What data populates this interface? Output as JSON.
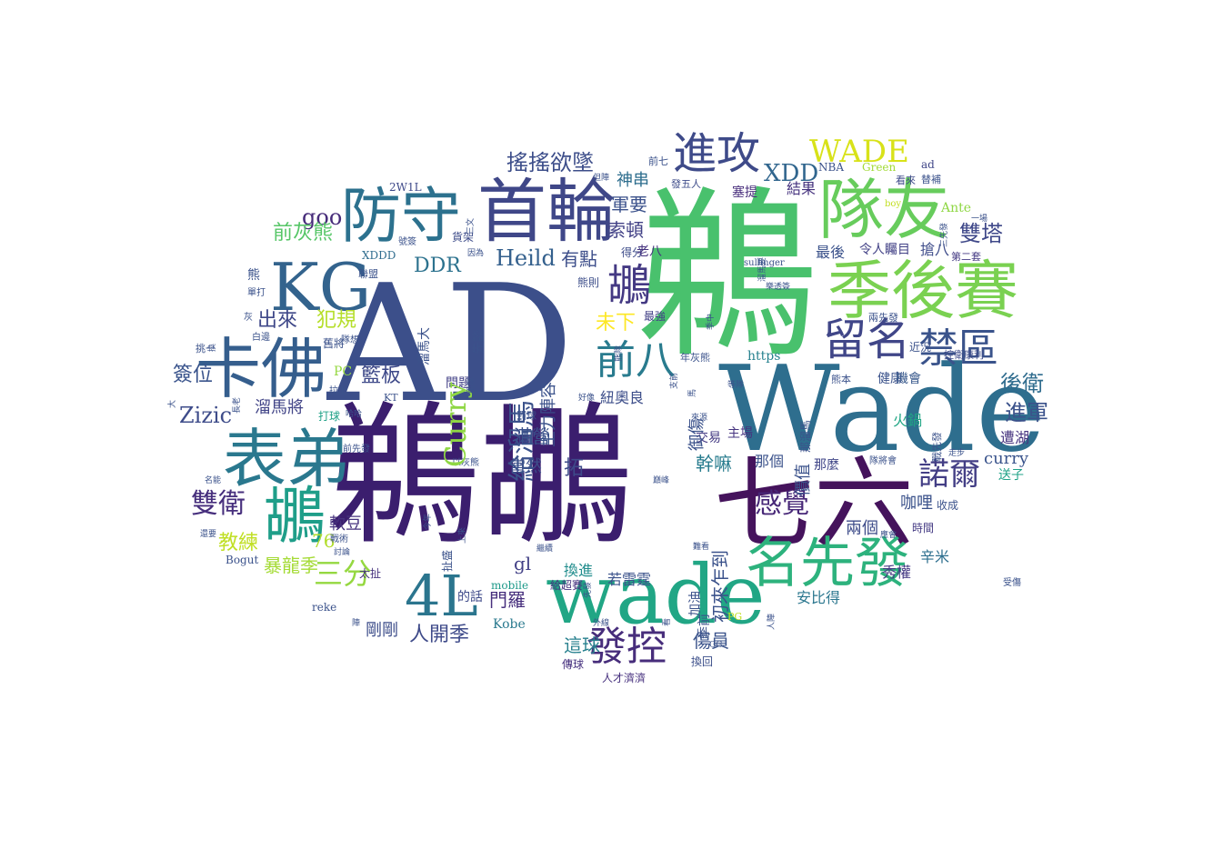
{
  "words": [
    {
      "text": "鵜鶘",
      "color": "#3b1e6e"
    },
    {
      "text": "鵜",
      "color": "#49c16d"
    },
    {
      "text": "AD",
      "color": "#3c4f8a"
    },
    {
      "text": "Wade",
      "color": "#2e6e8e"
    },
    {
      "text": "七六",
      "color": "#45135c"
    },
    {
      "text": "wade",
      "color": "#21a685"
    },
    {
      "text": "季後賽",
      "color": "#7ad151"
    },
    {
      "text": "首輪",
      "color": "#3f4788"
    },
    {
      "text": "隊友",
      "color": "#67cc5c"
    },
    {
      "text": "防守",
      "color": "#2c718e"
    },
    {
      "text": "KG",
      "color": "#33638d"
    },
    {
      "text": "卡佛",
      "color": "#355e8d"
    },
    {
      "text": "表弟",
      "color": "#2a788e"
    },
    {
      "text": "鶘",
      "color": "#1f9e89"
    },
    {
      "text": "名先發",
      "color": "#2db27d"
    },
    {
      "text": "4L",
      "color": "#2b758e"
    },
    {
      "text": "進攻",
      "color": "#3e4a89"
    },
    {
      "text": "留名",
      "color": "#404688"
    },
    {
      "text": "禁區",
      "color": "#3a538b"
    },
    {
      "text": "發控",
      "color": "#472d7b"
    },
    {
      "text": "前八",
      "color": "#297b8e"
    },
    {
      "text": "鶘",
      "color": "#443983"
    },
    {
      "text": "WADE",
      "color": "#d8e219"
    },
    {
      "text": "XDD",
      "color": "#31668e"
    },
    {
      "text": "搖搖欲墜",
      "color": "#3d4e8a"
    },
    {
      "text": "諾爾",
      "color": "#433e85"
    },
    {
      "text": "感覺",
      "color": "#482878"
    },
    {
      "text": "雙衛",
      "color": "#472f7d"
    },
    {
      "text": "三分",
      "color": "#95d840"
    },
    {
      "text": "雙塔",
      "color": "#3f4889"
    },
    {
      "text": "後衛",
      "color": "#2f6c8e"
    },
    {
      "text": "進軍",
      "color": "#3b528b"
    },
    {
      "text": "Zizic",
      "color": "#3e4c8a"
    },
    {
      "text": "Heild",
      "color": "#34608d"
    },
    {
      "text": "goo",
      "color": "#472c7a"
    },
    {
      "text": "DDR",
      "color": "#2c728e"
    },
    {
      "text": "出來",
      "color": "#3f4889"
    },
    {
      "text": "犯規",
      "color": "#b5de2b"
    },
    {
      "text": "前灰熊",
      "color": "#56c667"
    },
    {
      "text": "籃板",
      "color": "#3e4989"
    },
    {
      "text": "簽位",
      "color": "#3a548c"
    },
    {
      "text": "溜馬將",
      "color": "#414487"
    },
    {
      "text": "軟豆",
      "color": "#46327e"
    },
    {
      "text": "教練",
      "color": "#c0df25"
    },
    {
      "text": "暴龍季",
      "color": "#a5db36"
    },
    {
      "text": "76",
      "color": "#b2dd2d"
    },
    {
      "text": "人開季",
      "color": "#3e4a89"
    },
    {
      "text": "剛剛",
      "color": "#3d4d8a"
    },
    {
      "text": "門羅",
      "color": "#472f7d"
    },
    {
      "text": "gl",
      "color": "#424086"
    },
    {
      "text": "這球",
      "color": "#27808e"
    },
    {
      "text": "傷員",
      "color": "#3a538b"
    },
    {
      "text": "滿營",
      "color": "#3b518b"
    },
    {
      "text": "幹嘛",
      "color": "#287c8e"
    },
    {
      "text": "若雷霆",
      "color": "#3b528b"
    },
    {
      "text": "換進",
      "color": "#228d8d"
    },
    {
      "text": "有點",
      "color": "#3d4e8a"
    },
    {
      "text": "索頓",
      "color": "#424186"
    },
    {
      "text": "軍要",
      "color": "#3b518b"
    },
    {
      "text": "神串",
      "color": "#2e6e8e"
    },
    {
      "text": "未下",
      "color": "#fde725"
    },
    {
      "text": "咖哩",
      "color": "#3b528b"
    },
    {
      "text": "兩個",
      "color": "#3e4c8a"
    },
    {
      "text": "秀權",
      "color": "#443983"
    },
    {
      "text": "辛米",
      "color": "#2e6f8e"
    },
    {
      "text": "安比得",
      "color": "#2a768e"
    },
    {
      "text": "遭湖",
      "color": "#46337f"
    },
    {
      "text": "送子",
      "color": "#1fa287"
    },
    {
      "text": "curry",
      "color": "#3a548c"
    },
    {
      "text": "火鍋",
      "color": "#21a685"
    },
    {
      "text": "健康",
      "color": "#3b528b"
    },
    {
      "text": "機會",
      "color": "#38598c"
    },
    {
      "text": "最後",
      "color": "#3b528b"
    },
    {
      "text": "令人矚目",
      "color": "#424186"
    },
    {
      "text": "搶八",
      "color": "#3e4c8a"
    },
    {
      "text": "結果",
      "color": "#46337f"
    },
    {
      "text": "Ante",
      "color": "#8fd744"
    },
    {
      "text": "塞提",
      "color": "#472d7b"
    },
    {
      "text": "那個",
      "color": "#3b528b"
    },
    {
      "text": "那麼",
      "color": "#404688"
    },
    {
      "text": "交易",
      "color": "#443a83"
    },
    {
      "text": "主場",
      "color": "#463480"
    },
    {
      "text": "拓",
      "color": "#3e4a89"
    },
    {
      "text": "當然",
      "color": "#3d4e8a"
    },
    {
      "text": "https",
      "color": "#26818e"
    },
    {
      "text": "紐奧良",
      "color": "#3d4e8a"
    },
    {
      "text": "Kobe",
      "color": "#29798e"
    },
    {
      "text": "的話",
      "color": "#3e4989"
    },
    {
      "text": "問題",
      "color": "#424086"
    },
    {
      "text": "mobile",
      "color": "#1f9a8a"
    },
    {
      "text": "給超賽",
      "color": "#46337f"
    },
    {
      "text": "傳球",
      "color": "#46307e"
    },
    {
      "text": "人才濟濟",
      "color": "#46307e"
    },
    {
      "text": "換回",
      "color": "#3c4f8a"
    },
    {
      "text": "Bogut",
      "color": "#3b528b"
    },
    {
      "text": "reke",
      "color": "#3b528b"
    },
    {
      "text": "太扯",
      "color": "#46327e"
    },
    {
      "text": "打球",
      "color": "#1fa187"
    },
    {
      "text": "時間",
      "color": "#443a83"
    },
    {
      "text": "收成",
      "color": "#3b528b"
    },
    {
      "text": "Green",
      "color": "#a2da37"
    },
    {
      "text": "NBA",
      "color": "#3b528b"
    },
    {
      "text": "ad",
      "color": "#404688"
    },
    {
      "text": "看來",
      "color": "#3e4a89"
    },
    {
      "text": "發五人",
      "color": "#3e4c8a"
    },
    {
      "text": "前七",
      "color": "#3b528b"
    },
    {
      "text": "2W1L",
      "color": "#3e4989"
    },
    {
      "text": "貨架",
      "color": "#3e4c8a"
    },
    {
      "text": "得分",
      "color": "#3e4c8a"
    },
    {
      "text": "老八",
      "color": "#46337f"
    },
    {
      "text": "熊則",
      "color": "#3d4e8a"
    },
    {
      "text": "最強",
      "color": "#424086"
    },
    {
      "text": "PC",
      "color": "#95d840"
    },
    {
      "text": "XDDD",
      "color": "#2f6c8e"
    },
    {
      "text": "聯盟",
      "color": "#3b528b"
    },
    {
      "text": "熊",
      "color": "#3b528b"
    },
    {
      "text": "KT",
      "color": "#3b528b"
    },
    {
      "text": "罰球",
      "color": "#3b528b"
    },
    {
      "text": "PG",
      "color": "#c2df23"
    },
    {
      "text": "第二套",
      "color": "#443a83"
    },
    {
      "text": "控衛康利",
      "color": "#3e4a89"
    },
    {
      "text": "兩先發",
      "color": "#3b528b"
    },
    {
      "text": "近況",
      "color": "#3b528b"
    },
    {
      "text": "熊本",
      "color": "#3b528b"
    },
    {
      "text": "sullinger",
      "color": "#3b528b"
    },
    {
      "text": "年灰熊",
      "color": "#3b528b"
    },
    {
      "text": "單打",
      "color": "#3b528b"
    },
    {
      "text": "挑一",
      "color": "#3b528b"
    },
    {
      "text": "灰",
      "color": "#3b528b"
    },
    {
      "text": "前先發",
      "color": "#3b528b"
    },
    {
      "text": "受傷",
      "color": "#3b528b"
    },
    {
      "text": "號簽",
      "color": "#3b528b"
    },
    {
      "text": "白邊",
      "color": "#3b528b"
    },
    {
      "text": "拉上",
      "color": "#3b528b"
    },
    {
      "text": "戰術",
      "color": "#3b528b"
    },
    {
      "text": "討論",
      "color": "#3b528b"
    },
    {
      "text": "繼續",
      "color": "#3b528b"
    },
    {
      "text": "以灰熊",
      "color": "#3b528b"
    },
    {
      "text": "好像",
      "color": "#3b528b"
    },
    {
      "text": "外線",
      "color": "#3b528b"
    },
    {
      "text": "陣",
      "color": "#3b528b"
    },
    {
      "text": "GG",
      "color": "#3b528b"
    },
    {
      "text": "難看",
      "color": "#3b528b"
    },
    {
      "text": "等隊",
      "color": "#3b528b"
    },
    {
      "text": "來源",
      "color": "#3b528b"
    },
    {
      "text": "隊將會",
      "color": "#3b528b"
    },
    {
      "text": "走步",
      "color": "#3b528b"
    },
    {
      "text": "應會",
      "color": "#3b528b"
    },
    {
      "text": "巔峰",
      "color": "#3b528b"
    },
    {
      "text": "隊想",
      "color": "#3b528b"
    },
    {
      "text": "哈哈",
      "color": "#3b528b"
    },
    {
      "text": "但陣",
      "color": "#3b528b"
    },
    {
      "text": "因為",
      "color": "#3b528b"
    },
    {
      "text": "樂透簽",
      "color": "#3b528b"
    },
    {
      "text": "一場",
      "color": "#3b528b"
    },
    {
      "text": "boy",
      "color": "#c2df23"
    },
    {
      "text": "替補",
      "color": "#3b528b"
    },
    {
      "text": "名能",
      "color": "#3b528b"
    },
    {
      "text": "還要",
      "color": "#3b528b"
    },
    {
      "text": "舊將",
      "color": "#3b528b"
    },
    {
      "text": "先談",
      "color": "#3b528b"
    },
    {
      "text": "主力陣容",
      "color": "#3b528b"
    },
    {
      "text": "給溜馬",
      "color": "#3b528b"
    },
    {
      "text": "Curry",
      "color": "#3b528b"
    },
    {
      "text": "初來乍到",
      "color": "#3b528b"
    },
    {
      "text": "季前",
      "color": "#3b528b"
    },
    {
      "text": "加油",
      "color": "#3b528b"
    },
    {
      "text": "價值",
      "color": "#3b528b"
    },
    {
      "text": "御傷",
      "color": "#3b528b"
    },
    {
      "text": "那溜馬",
      "color": "#3b528b"
    },
    {
      "text": "戰先發",
      "color": "#3b528b"
    },
    {
      "text": "溜馬大",
      "color": "#3b528b"
    },
    {
      "text": "人陣",
      "color": "#3b528b"
    },
    {
      "text": "支前",
      "color": "#3b528b"
    },
    {
      "text": "季中",
      "color": "#3b528b"
    },
    {
      "text": "馬",
      "color": "#3b528b"
    },
    {
      "text": "溜馬要",
      "color": "#3b528b"
    },
    {
      "text": "兩隊",
      "color": "#3b528b"
    },
    {
      "text": "上來",
      "color": "#3b528b"
    },
    {
      "text": "扯盛",
      "color": "#3b528b"
    },
    {
      "text": "先發",
      "color": "#3b528b"
    },
    {
      "text": "長老",
      "color": "#3b528b"
    },
    {
      "text": "換",
      "color": "#3b528b"
    },
    {
      "text": "三文",
      "color": "#3b528b"
    },
    {
      "text": "大",
      "color": "#3b528b"
    },
    {
      "text": "看",
      "color": "#3b528b"
    },
    {
      "text": "今年",
      "color": "#3b528b"
    },
    {
      "text": "三先發",
      "color": "#3b528b"
    },
    {
      "text": "熊隊",
      "color": "#3b528b"
    }
  ]
}
